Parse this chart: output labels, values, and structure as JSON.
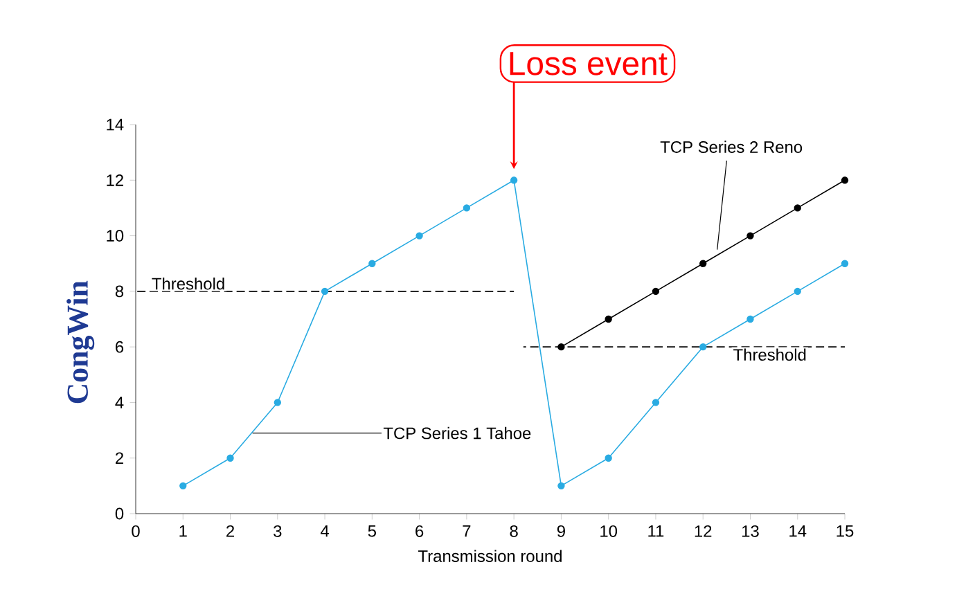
{
  "chart_data": {
    "type": "line",
    "xlabel": "Transmission round",
    "ylabel": "CongWin",
    "xlim": [
      0,
      15
    ],
    "ylim": [
      0,
      14
    ],
    "xticks": [
      0,
      1,
      2,
      3,
      4,
      5,
      6,
      7,
      8,
      9,
      10,
      11,
      12,
      13,
      14,
      15
    ],
    "yticks": [
      0,
      2,
      4,
      6,
      8,
      10,
      12,
      14
    ],
    "marker": "circle",
    "grid": false,
    "series": [
      {
        "name": "TCP Series 1 Tahoe",
        "color": "#29abe2",
        "x": [
          1,
          2,
          3,
          4,
          5,
          6,
          7,
          8,
          9,
          10,
          11,
          12,
          13,
          14,
          15
        ],
        "values": [
          1,
          2,
          4,
          8,
          9,
          10,
          11,
          12,
          1,
          2,
          4,
          6,
          7,
          8,
          9
        ]
      },
      {
        "name": "TCP Series 2 Reno",
        "color": "#000000",
        "x": [
          9,
          10,
          11,
          12,
          13,
          14,
          15
        ],
        "values": [
          6,
          7,
          8,
          9,
          10,
          11,
          12
        ]
      },
      {
        "name": "Threshold",
        "color": "#000000",
        "line_style": "dashed",
        "marker": "none",
        "x": [
          0,
          8
        ],
        "values": [
          8,
          8
        ]
      },
      {
        "name": "Threshold",
        "color": "#000000",
        "line_style": "dashed",
        "marker": "none",
        "x": [
          8.2,
          15
        ],
        "values": [
          6,
          6
        ]
      }
    ],
    "annotations": [
      "Loss event"
    ]
  }
}
